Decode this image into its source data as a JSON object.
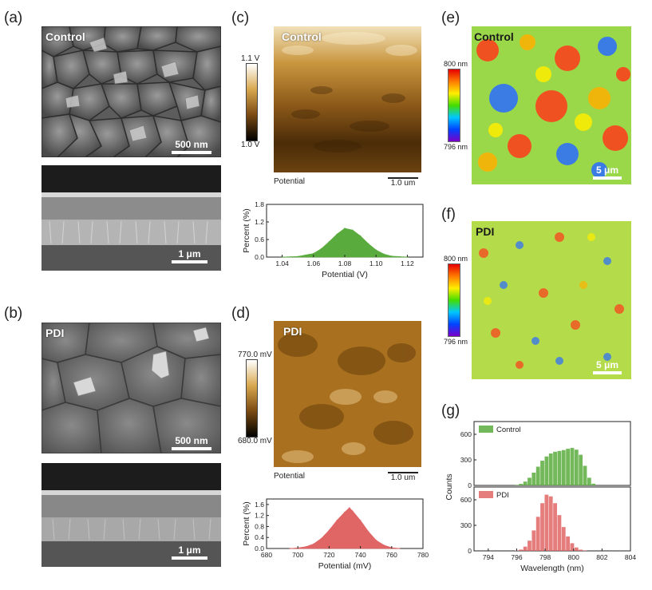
{
  "panel_labels": {
    "a": "(a)",
    "b": "(b)",
    "c": "(c)",
    "d": "(d)",
    "e": "(e)",
    "f": "(f)",
    "g": "(g)"
  },
  "sem": {
    "a_top": {
      "tag": "Control",
      "scale": "500 nm"
    },
    "a_bottom": {
      "scale": "1 μm"
    },
    "b_top": {
      "tag": "PDI",
      "scale": "500 nm"
    },
    "b_bottom": {
      "scale": "1 μm"
    }
  },
  "kpfm": {
    "c": {
      "tag": "Control",
      "caption": "Potential",
      "scale": "1.0 um",
      "cbar_max": "1.1 V",
      "cbar_min": "1.0 V"
    },
    "d": {
      "tag": "PDI",
      "caption": "Potential",
      "scale": "1.0 um",
      "cbar_max": "770.0 mV",
      "cbar_min": "680.0 mV"
    }
  },
  "pl_map": {
    "e": {
      "tag": "Control",
      "scale": "5 μm",
      "cbar_max": "800 nm",
      "cbar_min": "796 nm"
    },
    "f": {
      "tag": "PDI",
      "scale": "5 μm",
      "cbar_max": "800 nm",
      "cbar_min": "796 nm"
    }
  },
  "colors": {
    "green": "#5aab3d",
    "red": "#e06666",
    "gold": "#b8832b"
  },
  "chart_data": [
    {
      "id": "c_hist",
      "type": "area",
      "xlabel": "Potential (V)",
      "ylabel": "Percent (%)",
      "xlim": [
        1.03,
        1.13
      ],
      "ylim": [
        0,
        1.8
      ],
      "xticks": [
        "1.04",
        "1.06",
        "1.08",
        "1.10",
        "1.12"
      ],
      "yticks": [
        "0.0",
        "0.6",
        "1.2",
        "1.8"
      ],
      "x": [
        1.04,
        1.05,
        1.06,
        1.065,
        1.07,
        1.075,
        1.08,
        1.085,
        1.09,
        1.095,
        1.1,
        1.105,
        1.11,
        1.12
      ],
      "values": [
        0.0,
        0.02,
        0.12,
        0.28,
        0.52,
        0.78,
        0.98,
        0.92,
        0.72,
        0.46,
        0.24,
        0.1,
        0.03,
        0.0
      ],
      "color": "#5aab3d"
    },
    {
      "id": "d_hist",
      "type": "area",
      "xlabel": "Potential (mV)",
      "ylabel": "Percent (%)",
      "xlim": [
        680,
        780
      ],
      "ylim": [
        0,
        1.8
      ],
      "xticks": [
        "680",
        "700",
        "720",
        "740",
        "760",
        "780"
      ],
      "yticks": [
        "0.0",
        "0.4",
        "0.8",
        "1.2",
        "1.6"
      ],
      "x": [
        695,
        700,
        705,
        710,
        715,
        720,
        725,
        730,
        733,
        735,
        740,
        745,
        750,
        755,
        760,
        765
      ],
      "values": [
        0.0,
        0.02,
        0.06,
        0.16,
        0.36,
        0.66,
        1.02,
        1.32,
        1.48,
        1.36,
        1.02,
        0.62,
        0.3,
        0.12,
        0.03,
        0.0
      ],
      "color": "#e06666"
    },
    {
      "id": "g_hist",
      "type": "bar",
      "xlabel": "Wavelength (nm)",
      "ylabel": "Counts",
      "xlim": [
        793,
        804
      ],
      "xticks": [
        "794",
        "796",
        "798",
        "800",
        "802",
        "804"
      ],
      "series": [
        {
          "name": "Control",
          "color": "#5aab3d",
          "ylim": [
            0,
            750
          ],
          "yticks": [
            "0",
            "300",
            "600"
          ],
          "x": [
            796.0,
            796.3,
            796.6,
            796.9,
            797.2,
            797.5,
            797.8,
            798.1,
            798.4,
            798.7,
            799.0,
            799.3,
            799.6,
            799.9,
            800.2,
            800.5,
            800.8,
            801.1,
            801.4
          ],
          "values": [
            6,
            18,
            45,
            90,
            150,
            220,
            290,
            340,
            375,
            395,
            405,
            415,
            430,
            440,
            420,
            360,
            230,
            90,
            20
          ]
        },
        {
          "name": "PDI",
          "color": "#e06666",
          "ylim": [
            0,
            750
          ],
          "yticks": [
            "0",
            "300",
            "600"
          ],
          "x": [
            796.0,
            796.3,
            796.6,
            796.9,
            797.2,
            797.5,
            797.8,
            798.1,
            798.4,
            798.7,
            799.0,
            799.3,
            799.6,
            799.9,
            800.2,
            800.5,
            800.8
          ],
          "values": [
            4,
            15,
            50,
            120,
            240,
            400,
            560,
            660,
            640,
            560,
            420,
            280,
            170,
            90,
            40,
            14,
            4
          ]
        }
      ]
    }
  ]
}
